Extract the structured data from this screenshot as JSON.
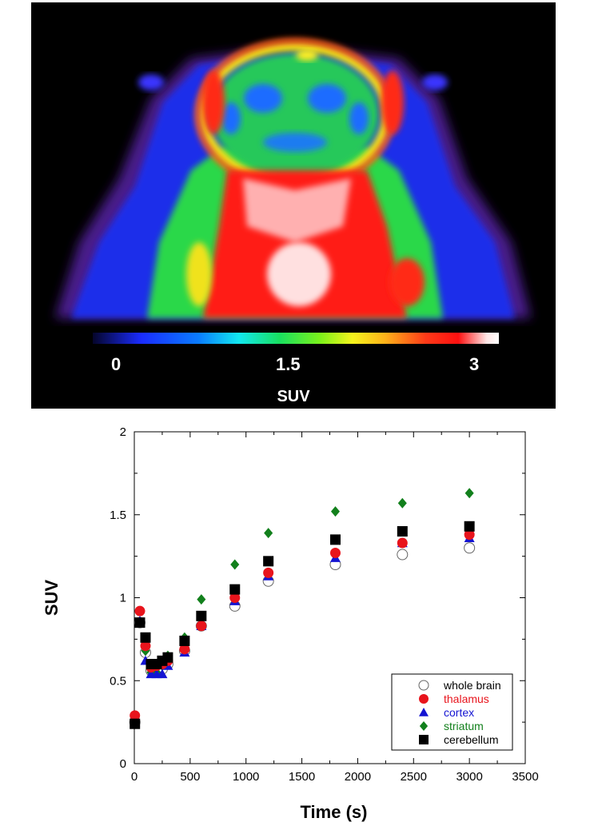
{
  "pet_image": {
    "colorbar_ticks": [
      "0",
      "1.5",
      "3"
    ],
    "colorbar_label": "SUV",
    "colormap": [
      "#05052a",
      "#1a2cff",
      "#12e8f0",
      "#18e060",
      "#f6f41c",
      "#ff3a18",
      "#ffffff"
    ]
  },
  "chart_data": {
    "type": "scatter",
    "title": "",
    "xlabel": "Time (s)",
    "ylabel": "SUV",
    "xlim": [
      0,
      3500
    ],
    "ylim": [
      0,
      2
    ],
    "xticks": [
      "0",
      "500",
      "1000",
      "1500",
      "2000",
      "2500",
      "3000",
      "3500"
    ],
    "yticks": [
      "0",
      "0.5",
      "1",
      "1.5",
      "2"
    ],
    "grid": false,
    "legend_position": "bottom-right",
    "series": [
      {
        "name": "whole brain",
        "marker": "open-circle",
        "color": "#555555",
        "x": [
          5,
          50,
          100,
          150,
          200,
          250,
          300,
          450,
          600,
          900,
          1200,
          1800,
          2400,
          3000
        ],
        "y": [
          0.25,
          0.85,
          0.67,
          0.56,
          0.56,
          0.57,
          0.6,
          0.68,
          0.83,
          0.95,
          1.1,
          1.2,
          1.26,
          1.3
        ]
      },
      {
        "name": "thalamus",
        "marker": "filled-circle",
        "color": "#e8141c",
        "x": [
          5,
          50,
          100,
          150,
          200,
          250,
          300,
          450,
          600,
          900,
          1200,
          1800,
          2400,
          3000
        ],
        "y": [
          0.29,
          0.92,
          0.71,
          0.58,
          0.59,
          0.6,
          0.62,
          0.69,
          0.83,
          1.0,
          1.15,
          1.27,
          1.33,
          1.38
        ]
      },
      {
        "name": "cortex",
        "marker": "triangle",
        "color": "#1414d2",
        "x": [
          5,
          50,
          100,
          150,
          200,
          250,
          300,
          450,
          600,
          900,
          1200,
          1800,
          2400,
          3000
        ],
        "y": [
          0.25,
          0.86,
          0.62,
          0.54,
          0.54,
          0.54,
          0.59,
          0.67,
          0.83,
          0.98,
          1.13,
          1.24,
          1.33,
          1.36
        ]
      },
      {
        "name": "striatum",
        "marker": "diamond",
        "color": "#12801c",
        "x": [
          5,
          50,
          100,
          150,
          200,
          250,
          300,
          450,
          600,
          900,
          1200,
          1800,
          2400,
          3000
        ],
        "y": [
          0.24,
          0.85,
          0.68,
          0.55,
          0.55,
          0.59,
          0.65,
          0.76,
          0.99,
          1.2,
          1.39,
          1.52,
          1.57,
          1.63
        ]
      },
      {
        "name": "cerebellum",
        "marker": "square",
        "color": "#000000",
        "x": [
          5,
          50,
          100,
          150,
          200,
          250,
          300,
          450,
          600,
          900,
          1200,
          1800,
          2400,
          3000
        ],
        "y": [
          0.24,
          0.85,
          0.76,
          0.6,
          0.6,
          0.62,
          0.64,
          0.74,
          0.89,
          1.05,
          1.22,
          1.35,
          1.4,
          1.43
        ]
      }
    ]
  }
}
